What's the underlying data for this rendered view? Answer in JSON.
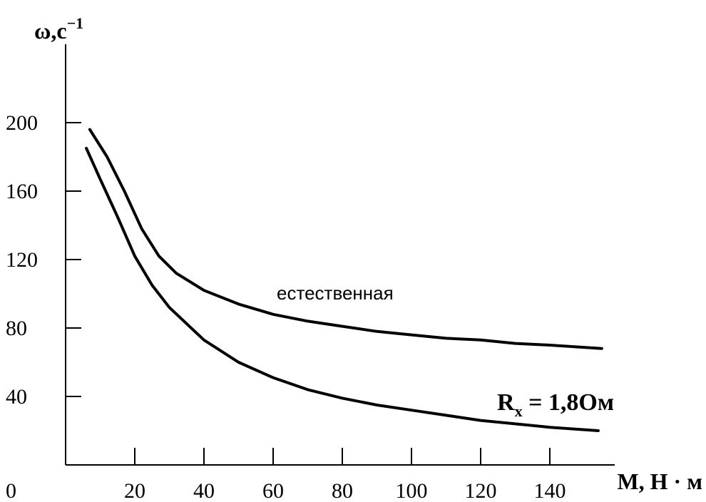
{
  "chart_data": {
    "type": "line",
    "xlabel": "М, Н · м",
    "ylabel": "ω,с",
    "ylabel_exp": "−1",
    "xlim": [
      0,
      160
    ],
    "ylim": [
      0,
      220
    ],
    "x_ticks": [
      20,
      40,
      60,
      80,
      100,
      120,
      140
    ],
    "y_ticks": [
      40,
      80,
      120,
      160,
      200
    ],
    "origin_label": "0",
    "grid": false,
    "series": [
      {
        "name": "естественная",
        "points": [
          [
            7,
            196
          ],
          [
            12,
            180
          ],
          [
            17,
            160
          ],
          [
            22,
            138
          ],
          [
            27,
            122
          ],
          [
            32,
            112
          ],
          [
            40,
            102
          ],
          [
            50,
            94
          ],
          [
            60,
            88
          ],
          [
            70,
            84
          ],
          [
            80,
            81
          ],
          [
            90,
            78
          ],
          [
            100,
            76
          ],
          [
            110,
            74
          ],
          [
            120,
            73
          ],
          [
            130,
            71
          ],
          [
            140,
            70
          ],
          [
            155,
            68
          ]
        ]
      },
      {
        "name": "R",
        "name_sub": "x",
        "name_rest": " = 1,8Ом",
        "points": [
          [
            6,
            185
          ],
          [
            10,
            167
          ],
          [
            15,
            145
          ],
          [
            20,
            122
          ],
          [
            25,
            105
          ],
          [
            30,
            92
          ],
          [
            40,
            73
          ],
          [
            50,
            60
          ],
          [
            60,
            51
          ],
          [
            70,
            44
          ],
          [
            80,
            39
          ],
          [
            90,
            35
          ],
          [
            100,
            32
          ],
          [
            110,
            29
          ],
          [
            120,
            26
          ],
          [
            130,
            24
          ],
          [
            140,
            22
          ],
          [
            154,
            20
          ]
        ]
      }
    ]
  }
}
